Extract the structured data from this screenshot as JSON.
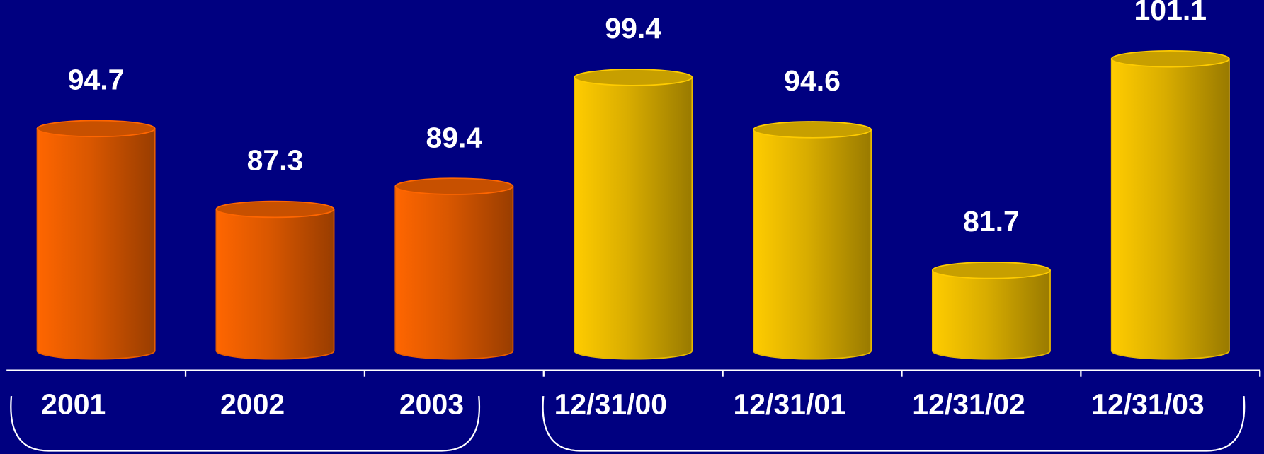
{
  "chart_data": {
    "type": "bar",
    "categories": [
      "2001",
      "2002",
      "2003",
      "12/31/00",
      "12/31/01",
      "12/31/02",
      "12/31/03"
    ],
    "values": [
      94.7,
      87.3,
      89.4,
      99.4,
      94.6,
      81.7,
      101.1
    ],
    "colors": [
      "#ff6600",
      "#ff6600",
      "#ff6600",
      "#ffcc00",
      "#ffcc00",
      "#ffcc00",
      "#ffcc00"
    ],
    "ylim": [
      74.3,
      106.5
    ]
  }
}
